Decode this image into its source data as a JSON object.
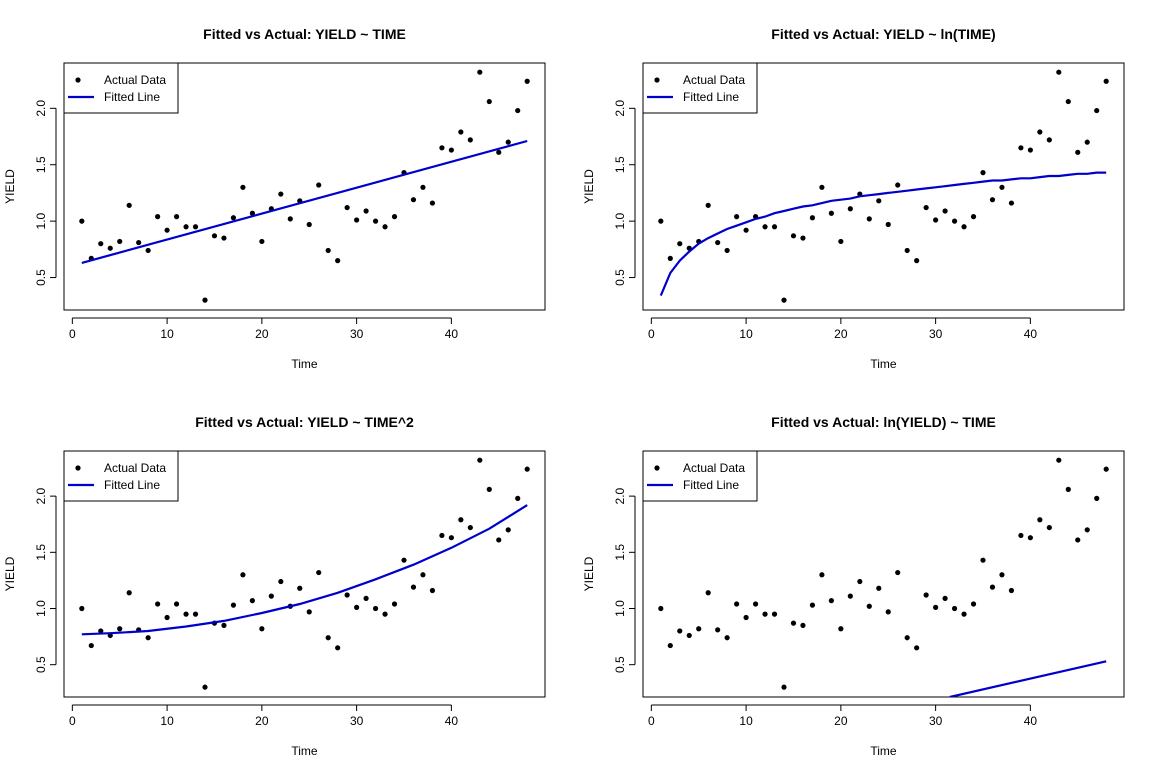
{
  "chart_data": [
    {
      "type": "scatter",
      "title": "Fitted vs Actual: YIELD ~ TIME",
      "xlabel": "Time",
      "ylabel": "YIELD",
      "xlim": [
        -0.88,
        49.88
      ],
      "ylim": [
        0.2124,
        2.4016
      ],
      "xticks": [
        0,
        10,
        20,
        30,
        40
      ],
      "yticks": [
        0.5,
        1.0,
        1.5,
        2.0
      ],
      "legend": {
        "position": "top-left",
        "entries": [
          {
            "label": "Actual Data",
            "kind": "point",
            "color": "#000000"
          },
          {
            "label": "Fitted Line",
            "kind": "line",
            "color": "#0000CD"
          }
        ]
      },
      "series": [
        {
          "name": "Actual Data",
          "kind": "points",
          "color": "#000000",
          "x": [
            1,
            2,
            3,
            4,
            5,
            6,
            7,
            8,
            9,
            10,
            11,
            12,
            13,
            14,
            15,
            16,
            17,
            18,
            19,
            20,
            21,
            22,
            23,
            24,
            25,
            26,
            27,
            28,
            29,
            30,
            31,
            32,
            33,
            34,
            35,
            36,
            37,
            38,
            39,
            40,
            41,
            42,
            43,
            44,
            45,
            46,
            47,
            48
          ],
          "y": [
            1.0,
            0.67,
            0.8,
            0.76,
            0.82,
            1.14,
            0.81,
            0.74,
            1.04,
            0.92,
            1.04,
            0.95,
            0.95,
            0.3,
            0.87,
            0.85,
            1.03,
            1.3,
            1.07,
            0.82,
            1.11,
            1.24,
            1.02,
            1.18,
            0.97,
            1.32,
            0.74,
            0.65,
            1.12,
            1.01,
            1.09,
            1.0,
            0.95,
            1.04,
            1.43,
            1.19,
            1.3,
            1.16,
            1.65,
            1.63,
            1.79,
            1.72,
            2.32,
            2.06,
            1.61,
            1.7,
            1.98,
            2.24
          ]
        },
        {
          "name": "Fitted Line",
          "kind": "line",
          "color": "#0000CD",
          "x": [
            1,
            48
          ],
          "y": [
            0.63,
            1.71
          ]
        }
      ]
    },
    {
      "type": "scatter",
      "title": "Fitted vs Actual: YIELD ~ ln(TIME)",
      "xlabel": "Time",
      "ylabel": "YIELD",
      "xlim": [
        -0.88,
        49.88
      ],
      "ylim": [
        0.2124,
        2.4016
      ],
      "xticks": [
        0,
        10,
        20,
        30,
        40
      ],
      "yticks": [
        0.5,
        1.0,
        1.5,
        2.0
      ],
      "legend": {
        "position": "top-left",
        "entries": [
          {
            "label": "Actual Data",
            "kind": "point",
            "color": "#000000"
          },
          {
            "label": "Fitted Line",
            "kind": "line",
            "color": "#0000CD"
          }
        ]
      },
      "series": [
        {
          "name": "Actual Data",
          "kind": "points",
          "color": "#000000",
          "x": [
            1,
            2,
            3,
            4,
            5,
            6,
            7,
            8,
            9,
            10,
            11,
            12,
            13,
            14,
            15,
            16,
            17,
            18,
            19,
            20,
            21,
            22,
            23,
            24,
            25,
            26,
            27,
            28,
            29,
            30,
            31,
            32,
            33,
            34,
            35,
            36,
            37,
            38,
            39,
            40,
            41,
            42,
            43,
            44,
            45,
            46,
            47,
            48
          ],
          "y": [
            1.0,
            0.67,
            0.8,
            0.76,
            0.82,
            1.14,
            0.81,
            0.74,
            1.04,
            0.92,
            1.04,
            0.95,
            0.95,
            0.3,
            0.87,
            0.85,
            1.03,
            1.3,
            1.07,
            0.82,
            1.11,
            1.24,
            1.02,
            1.18,
            0.97,
            1.32,
            0.74,
            0.65,
            1.12,
            1.01,
            1.09,
            1.0,
            0.95,
            1.04,
            1.43,
            1.19,
            1.3,
            1.16,
            1.65,
            1.63,
            1.79,
            1.72,
            2.32,
            2.06,
            1.61,
            1.7,
            1.98,
            2.24
          ]
        },
        {
          "name": "Fitted Line",
          "kind": "line",
          "color": "#0000CD",
          "x": [
            1,
            2,
            3,
            4,
            5,
            6,
            7,
            8,
            9,
            10,
            11,
            12,
            13,
            14,
            15,
            16,
            17,
            18,
            19,
            20,
            21,
            22,
            23,
            24,
            25,
            26,
            27,
            28,
            29,
            30,
            31,
            32,
            33,
            34,
            35,
            36,
            37,
            38,
            39,
            40,
            41,
            42,
            43,
            44,
            45,
            46,
            47,
            48
          ],
          "y": [
            0.34,
            0.54,
            0.65,
            0.73,
            0.8,
            0.85,
            0.89,
            0.93,
            0.96,
            0.99,
            1.02,
            1.04,
            1.07,
            1.09,
            1.11,
            1.13,
            1.14,
            1.16,
            1.18,
            1.19,
            1.2,
            1.22,
            1.23,
            1.24,
            1.25,
            1.26,
            1.27,
            1.28,
            1.29,
            1.3,
            1.31,
            1.32,
            1.33,
            1.34,
            1.35,
            1.36,
            1.36,
            1.37,
            1.38,
            1.38,
            1.39,
            1.4,
            1.4,
            1.41,
            1.42,
            1.42,
            1.43,
            1.43
          ]
        }
      ]
    },
    {
      "type": "scatter",
      "title": "Fitted vs Actual: YIELD ~ TIME^2",
      "xlabel": "Time",
      "ylabel": "YIELD",
      "xlim": [
        -0.88,
        49.88
      ],
      "ylim": [
        0.2124,
        2.4016
      ],
      "xticks": [
        0,
        10,
        20,
        30,
        40
      ],
      "yticks": [
        0.5,
        1.0,
        1.5,
        2.0
      ],
      "legend": {
        "position": "top-left",
        "entries": [
          {
            "label": "Actual Data",
            "kind": "point",
            "color": "#000000"
          },
          {
            "label": "Fitted Line",
            "kind": "line",
            "color": "#0000CD"
          }
        ]
      },
      "series": [
        {
          "name": "Actual Data",
          "kind": "points",
          "color": "#000000",
          "x": [
            1,
            2,
            3,
            4,
            5,
            6,
            7,
            8,
            9,
            10,
            11,
            12,
            13,
            14,
            15,
            16,
            17,
            18,
            19,
            20,
            21,
            22,
            23,
            24,
            25,
            26,
            27,
            28,
            29,
            30,
            31,
            32,
            33,
            34,
            35,
            36,
            37,
            38,
            39,
            40,
            41,
            42,
            43,
            44,
            45,
            46,
            47,
            48
          ],
          "y": [
            1.0,
            0.67,
            0.8,
            0.76,
            0.82,
            1.14,
            0.81,
            0.74,
            1.04,
            0.92,
            1.04,
            0.95,
            0.95,
            0.3,
            0.87,
            0.85,
            1.03,
            1.3,
            1.07,
            0.82,
            1.11,
            1.24,
            1.02,
            1.18,
            0.97,
            1.32,
            0.74,
            0.65,
            1.12,
            1.01,
            1.09,
            1.0,
            0.95,
            1.04,
            1.43,
            1.19,
            1.3,
            1.16,
            1.65,
            1.63,
            1.79,
            1.72,
            2.32,
            2.06,
            1.61,
            1.7,
            1.98,
            2.24
          ]
        },
        {
          "name": "Fitted Line",
          "kind": "line",
          "color": "#0000CD",
          "x": [
            1,
            4,
            8,
            12,
            16,
            20,
            24,
            28,
            32,
            36,
            40,
            44,
            48
          ],
          "y": [
            0.77,
            0.78,
            0.8,
            0.84,
            0.89,
            0.96,
            1.04,
            1.14,
            1.26,
            1.39,
            1.54,
            1.71,
            1.92
          ]
        }
      ]
    },
    {
      "type": "scatter",
      "title": "Fitted vs Actual: ln(YIELD) ~ TIME",
      "xlabel": "Time",
      "ylabel": "YIELD",
      "xlim": [
        -0.88,
        49.88
      ],
      "ylim": [
        0.2124,
        2.4016
      ],
      "xticks": [
        0,
        10,
        20,
        30,
        40
      ],
      "yticks": [
        0.5,
        1.0,
        1.5,
        2.0
      ],
      "legend": {
        "position": "top-left",
        "entries": [
          {
            "label": "Actual Data",
            "kind": "point",
            "color": "#000000"
          },
          {
            "label": "Fitted Line",
            "kind": "line",
            "color": "#0000CD"
          }
        ]
      },
      "series": [
        {
          "name": "Actual Data",
          "kind": "points",
          "color": "#000000",
          "x": [
            1,
            2,
            3,
            4,
            5,
            6,
            7,
            8,
            9,
            10,
            11,
            12,
            13,
            14,
            15,
            16,
            17,
            18,
            19,
            20,
            21,
            22,
            23,
            24,
            25,
            26,
            27,
            28,
            29,
            30,
            31,
            32,
            33,
            34,
            35,
            36,
            37,
            38,
            39,
            40,
            41,
            42,
            43,
            44,
            45,
            46,
            47,
            48
          ],
          "y": [
            1.0,
            0.67,
            0.8,
            0.76,
            0.82,
            1.14,
            0.81,
            0.74,
            1.04,
            0.92,
            1.04,
            0.95,
            0.95,
            0.3,
            0.87,
            0.85,
            1.03,
            1.3,
            1.07,
            0.82,
            1.11,
            1.24,
            1.02,
            1.18,
            0.97,
            1.32,
            0.74,
            0.65,
            1.12,
            1.01,
            1.09,
            1.0,
            0.95,
            1.04,
            1.43,
            1.19,
            1.3,
            1.16,
            1.65,
            1.63,
            1.79,
            1.72,
            2.32,
            2.06,
            1.61,
            1.7,
            1.98,
            2.24
          ]
        },
        {
          "name": "Fitted Line",
          "kind": "line",
          "color": "#0000CD",
          "x": [
            31.5,
            48
          ],
          "y": [
            0.2124,
            0.53
          ]
        }
      ]
    }
  ]
}
